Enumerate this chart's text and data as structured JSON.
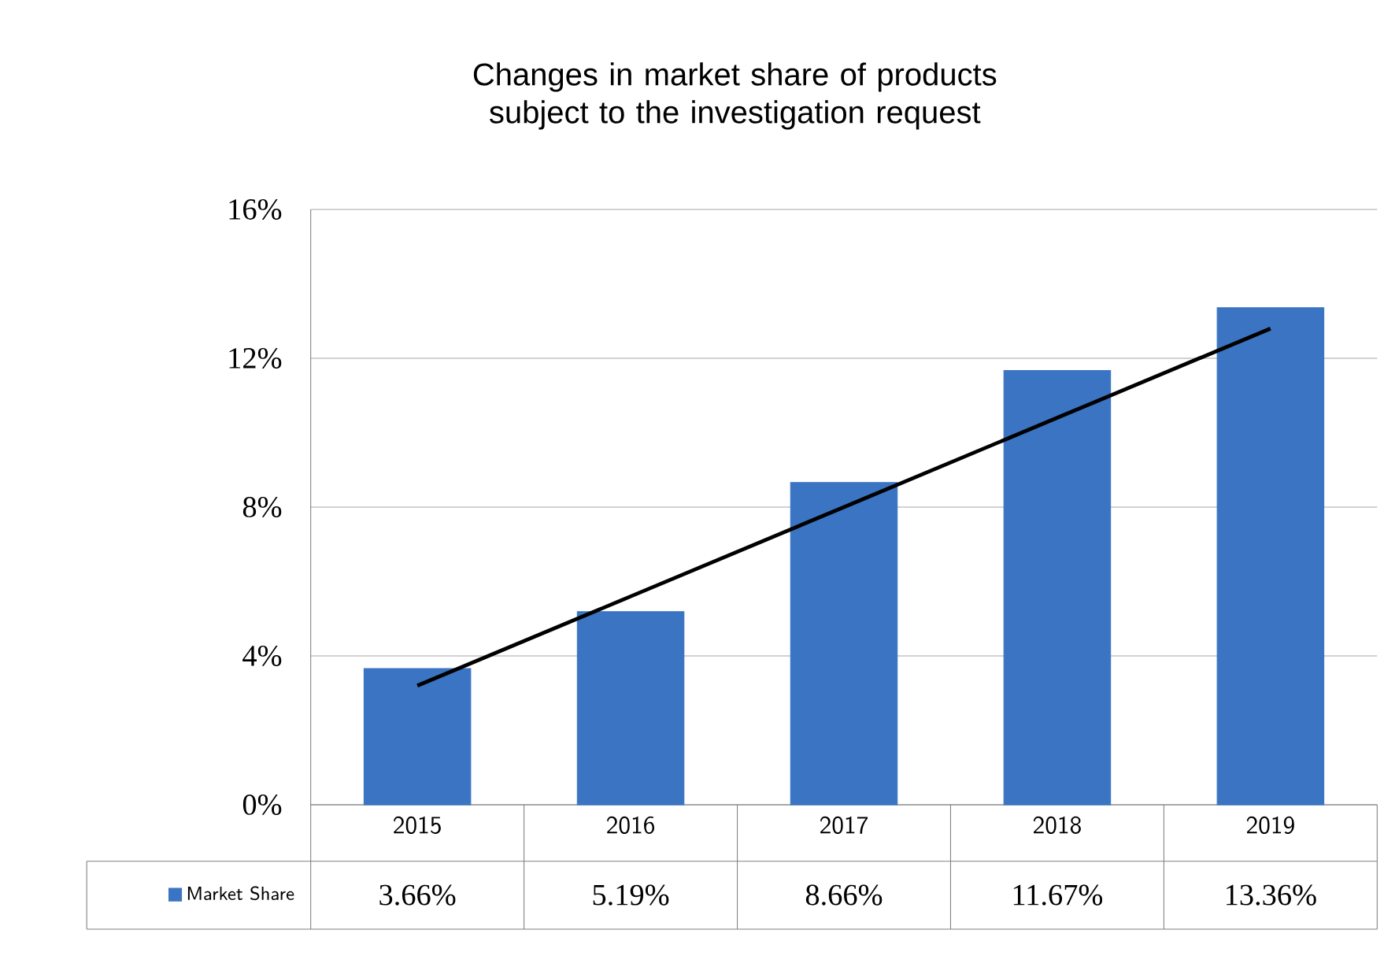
{
  "chart_data": {
    "type": "bar",
    "title": "Changes in market share of products\nsubject to the investigation request",
    "categories": [
      "2015",
      "2016",
      "2017",
      "2018",
      "2019"
    ],
    "series": [
      {
        "name": "Market Share",
        "color": "#3a74c2",
        "values": [
          3.66,
          5.19,
          8.66,
          11.67,
          13.36
        ],
        "value_labels": [
          "3.66%",
          "5.19%",
          "8.66%",
          "11.67%",
          "13.36%"
        ]
      },
      {
        "type": "line",
        "color": "#000000",
        "values": [
          3.2,
          5.6,
          8,
          10.4,
          12.8
        ]
      }
    ],
    "ylim": [
      0,
      16
    ],
    "yticks": [
      {
        "value": 0,
        "label": "0%"
      },
      {
        "value": 4,
        "label": "4%"
      },
      {
        "value": 8,
        "label": "8%"
      },
      {
        "value": 12,
        "label": "12%"
      },
      {
        "value": 16,
        "label": "16%"
      }
    ],
    "grid": "y",
    "legend": "bottom left"
  }
}
